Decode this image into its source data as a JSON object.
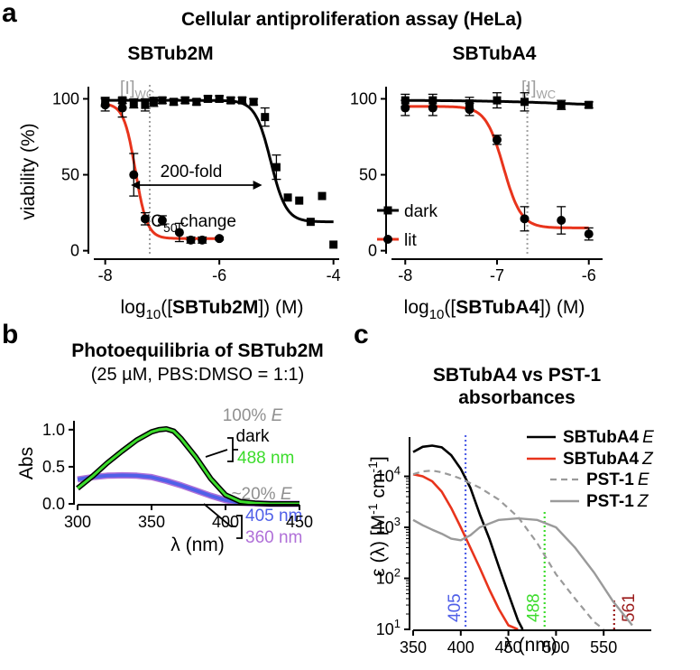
{
  "figure": {
    "letters": {
      "a": "a",
      "b": "b",
      "c": "c"
    },
    "main_title": "Cellular antiproliferation assay  (HeLa)"
  },
  "colors": {
    "dark": "#000000",
    "lit": "#e8341c",
    "wc_line": "#a0a0a0",
    "green": "#3cdc2c",
    "blue": "#5060e8",
    "purple": "#b070d8",
    "grey_text": "#909090",
    "pst_grey": "#9a9a9a",
    "green_dotted": "#3cdc2c",
    "darkred": "#9b1c1c"
  },
  "chart_data": [
    {
      "id": "sbtub2m",
      "type": "scatter",
      "title": "SBTub2M",
      "xlabel_prefix": "log",
      "xlabel_sub": "10",
      "xlabel_mid": "([",
      "xlabel_bold": "SBTub2M",
      "xlabel_suffix": "]) (M)",
      "ylabel": "viability (%)",
      "xlim": [
        -8.2,
        -3.9
      ],
      "ylim": [
        -2,
        108
      ],
      "xticks": [
        -8,
        -6,
        -4
      ],
      "xtick_labels": [
        "-8",
        "-6",
        "-4"
      ],
      "yticks": [
        0,
        50,
        100
      ],
      "ytick_labels": [
        "0",
        "50",
        "100"
      ],
      "wc_label": "[I]",
      "wc_sub": "WC",
      "wc_x": -7.22,
      "annotations": {
        "fold": "200-fold",
        "ic": "IC",
        "ic_sub": "50",
        "change": "change"
      },
      "arrow_x": [
        -7.55,
        -5.25
      ],
      "series": [
        {
          "name": "dark",
          "marker": "square",
          "x": [
            -8.0,
            -7.7,
            -7.5,
            -7.3,
            -7.15,
            -7.0,
            -6.8,
            -6.6,
            -6.4,
            -6.2,
            -6.0,
            -5.8,
            -5.6,
            -5.4,
            -5.2,
            -5.0,
            -4.8,
            -4.6,
            -4.4,
            -4.2,
            -4.0
          ],
          "y": [
            98,
            99,
            97,
            96,
            98,
            99,
            98,
            99,
            98,
            100,
            100,
            99,
            99,
            98,
            88,
            55,
            35,
            33,
            19,
            36,
            4
          ],
          "err": [
            3,
            2,
            3,
            4,
            3,
            2,
            2,
            2,
            2,
            2,
            2,
            2,
            2,
            2,
            6,
            8,
            0,
            0,
            0,
            0,
            0
          ],
          "curve": {
            "top": 99,
            "bottom": 19,
            "logic50": -5.1,
            "hill": 3.2
          }
        },
        {
          "name": "lit",
          "marker": "circle",
          "x": [
            -8.0,
            -7.7,
            -7.5,
            -7.3,
            -7.0,
            -6.7,
            -6.5,
            -6.3,
            -6.0
          ],
          "y": [
            96,
            94,
            50,
            21,
            20,
            12,
            7,
            7,
            8
          ],
          "err": [
            4,
            6,
            14,
            4,
            3,
            6,
            2,
            2,
            1
          ],
          "curve": {
            "top": 97,
            "bottom": 8,
            "logic50": -7.47,
            "hill": 4.2
          }
        }
      ]
    },
    {
      "id": "sbtuba4",
      "type": "scatter",
      "title": "SBTubA4",
      "xlabel_prefix": "log",
      "xlabel_sub": "10",
      "xlabel_mid": "([",
      "xlabel_bold": "SBTubA4",
      "xlabel_suffix": "]) (M)",
      "xlim": [
        -8.15,
        -5.85
      ],
      "ylim": [
        -2,
        108
      ],
      "xticks": [
        -8,
        -7,
        -6
      ],
      "xtick_labels": [
        "-8",
        "-7",
        "-6"
      ],
      "yticks": [
        0,
        50,
        100
      ],
      "ytick_labels": [
        "0",
        "50",
        "100"
      ],
      "wc_label": "[I]",
      "wc_sub": "WC",
      "wc_x": -6.67,
      "legend": [
        "dark",
        "lit"
      ],
      "series": [
        {
          "name": "dark",
          "marker": "square",
          "x": [
            -8.0,
            -7.7,
            -7.3,
            -7.0,
            -6.7,
            -6.3,
            -6.0
          ],
          "y": [
            99,
            99,
            97,
            99,
            98,
            96,
            96
          ],
          "err": [
            4,
            4,
            4,
            5,
            6,
            3,
            2
          ],
          "curve": {
            "top": 99,
            "bottom": 95,
            "logic50": -6.3,
            "hill": 1
          }
        },
        {
          "name": "lit",
          "marker": "circle",
          "x": [
            -8.0,
            -7.7,
            -7.3,
            -7.0,
            -6.7,
            -6.3,
            -6.0
          ],
          "y": [
            94,
            94,
            93,
            73,
            21,
            20,
            11
          ],
          "err": [
            5,
            5,
            4,
            3,
            8,
            9,
            4
          ],
          "curve": {
            "top": 95,
            "bottom": 15,
            "logic50": -6.93,
            "hill": 4.5
          }
        }
      ]
    },
    {
      "id": "photoeq",
      "type": "line",
      "title": "Photoequilibria of SBTub2M",
      "subtitle": "(25 µM, PBS:DMSO = 1:1)",
      "xlabel": "λ (nm)",
      "ylabel": "Abs",
      "xlim": [
        300,
        450
      ],
      "ylim": [
        0,
        1.12
      ],
      "xticks": [
        300,
        350,
        400,
        450
      ],
      "xtick_labels": [
        "300",
        "350",
        "400",
        "450"
      ],
      "yticks": [
        0.0,
        0.5,
        1.0
      ],
      "ytick_labels": [
        "0.0",
        "0.5",
        "1.0"
      ],
      "labels": {
        "e100": "100% ",
        "e20": "~20% ",
        "e_italic": "E",
        "dark": "dark",
        "nm488": "488 nm",
        "nm405": "405 nm",
        "nm360": "360 nm"
      },
      "series": [
        {
          "name": "dark",
          "x": [
            300,
            310,
            320,
            330,
            340,
            350,
            355,
            360,
            365,
            370,
            380,
            390,
            400,
            410,
            420,
            430,
            450
          ],
          "y": [
            0.21,
            0.37,
            0.55,
            0.71,
            0.86,
            0.97,
            1.0,
            1.01,
            0.98,
            0.88,
            0.63,
            0.34,
            0.12,
            0.03,
            0.01,
            0.0,
            0.0
          ]
        },
        {
          "name": "488 nm",
          "x": [
            300,
            310,
            320,
            330,
            340,
            350,
            355,
            360,
            365,
            370,
            380,
            390,
            400,
            410,
            420,
            430,
            450
          ],
          "y": [
            0.21,
            0.37,
            0.55,
            0.71,
            0.86,
            0.97,
            1.0,
            1.01,
            0.98,
            0.88,
            0.63,
            0.34,
            0.12,
            0.03,
            0.01,
            0.0,
            0.0
          ]
        },
        {
          "name": "405 nm",
          "x": [
            300,
            310,
            320,
            330,
            340,
            350,
            360,
            370,
            380,
            390,
            400,
            410,
            420,
            430,
            450
          ],
          "y": [
            0.33,
            0.36,
            0.38,
            0.385,
            0.38,
            0.36,
            0.31,
            0.25,
            0.18,
            0.11,
            0.05,
            0.015,
            0.005,
            0.0,
            0.0
          ]
        },
        {
          "name": "360 nm",
          "x": [
            300,
            310,
            320,
            330,
            340,
            350,
            360,
            370,
            380,
            390,
            400,
            410,
            420,
            430,
            450
          ],
          "y": [
            0.33,
            0.36,
            0.38,
            0.385,
            0.38,
            0.36,
            0.31,
            0.25,
            0.18,
            0.11,
            0.05,
            0.015,
            0.005,
            0.0,
            0.0
          ]
        }
      ]
    },
    {
      "id": "absorbance",
      "type": "line",
      "title": "SBTubA4 vs PST-1",
      "title2": "absorbances",
      "ylabel": "ε (λ) [M",
      "ylabel_sup1": "-1",
      "ylabel_mid": " cm",
      "ylabel_sup2": "-1",
      "ylabel_end": "]",
      "xlabel": "λ (nm)",
      "xlim": [
        350,
        600
      ],
      "ylim_log10": [
        1,
        4.7
      ],
      "yscale": "log",
      "xticks": [
        350,
        400,
        450,
        500,
        550
      ],
      "xtick_labels": [
        "350",
        "400",
        "450",
        "500",
        "550"
      ],
      "yticks_exp": [
        1,
        2,
        3,
        4
      ],
      "ytick_base": "10",
      "ytick_exps": [
        "1",
        "2",
        "3",
        "4"
      ],
      "vlines": [
        {
          "x": 405,
          "label": "405",
          "color": "blue"
        },
        {
          "x": 488,
          "label": "488",
          "color": "green_dotted"
        },
        {
          "x": 561,
          "label": "561",
          "color": "darkred"
        }
      ],
      "legend": [
        {
          "name": "SBTubA4",
          "iso": "E"
        },
        {
          "name": "SBTubA4",
          "iso": "Z"
        },
        {
          "name": "PST-1",
          "iso": "E"
        },
        {
          "name": "PST-1",
          "iso": "Z"
        }
      ],
      "series": [
        {
          "name": "SBTubA4 E",
          "x": [
            350,
            360,
            370,
            380,
            390,
            400,
            410,
            420,
            430,
            440,
            450,
            460,
            465
          ],
          "y": [
            30000,
            38000,
            40000,
            37000,
            26000,
            14000,
            6000,
            1800,
            600,
            170,
            50,
            15,
            10
          ]
        },
        {
          "name": "SBTubA4 Z",
          "x": [
            350,
            360,
            370,
            380,
            390,
            400,
            410,
            420,
            430,
            440,
            450,
            460
          ],
          "y": [
            11000,
            10000,
            8000,
            5000,
            2400,
            1000,
            400,
            160,
            60,
            25,
            12,
            10
          ]
        },
        {
          "name": "PST-1 E",
          "x": [
            350,
            360,
            370,
            380,
            390,
            400,
            420,
            440,
            460,
            480,
            500,
            520,
            540,
            550
          ],
          "y": [
            11000,
            12500,
            13000,
            12000,
            10500,
            9000,
            6000,
            3500,
            1600,
            500,
            120,
            40,
            14,
            10
          ]
        },
        {
          "name": "PST-1 Z",
          "x": [
            350,
            360,
            370,
            380,
            390,
            400,
            410,
            420,
            440,
            460,
            480,
            500,
            520,
            540,
            560,
            580
          ],
          "y": [
            1400,
            1100,
            900,
            750,
            600,
            560,
            700,
            1000,
            1400,
            1500,
            1400,
            1000,
            400,
            130,
            35,
            12
          ]
        }
      ]
    }
  ]
}
